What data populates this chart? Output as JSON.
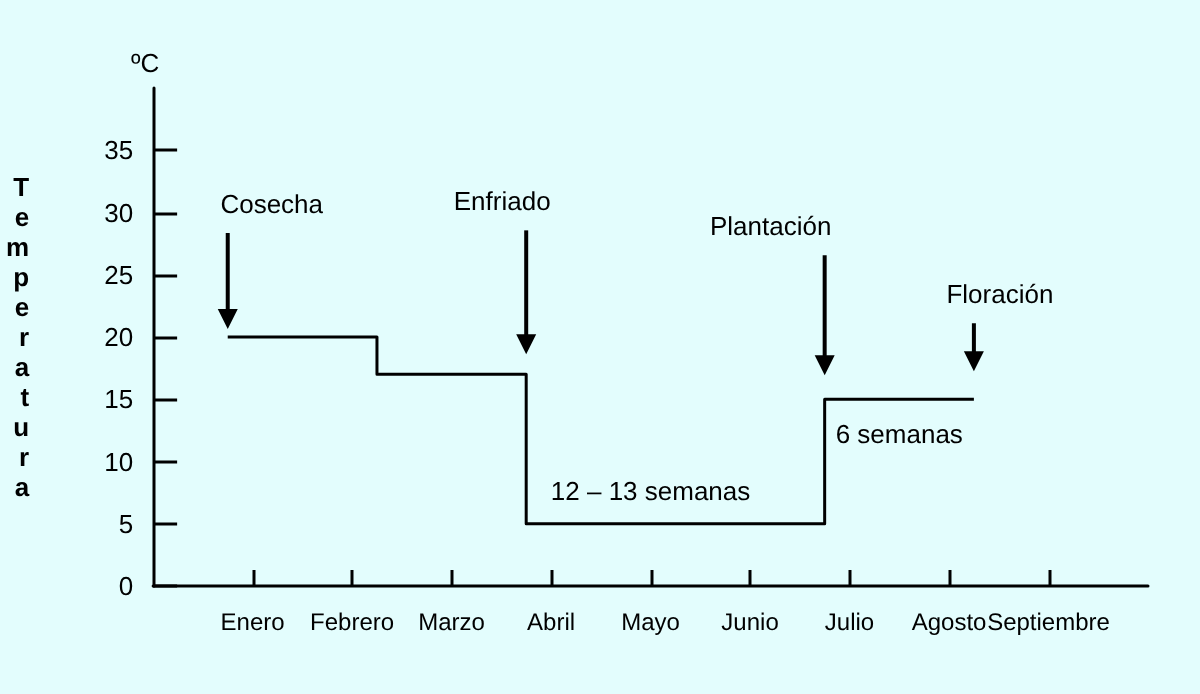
{
  "chart_data": {
    "type": "step",
    "ylabel": "Temperatura",
    "categories": [
      null,
      null,
      null,
      null,
      "Enero",
      null,
      null,
      null,
      "Febrero",
      null,
      null,
      null,
      "Marzo",
      null,
      null,
      null,
      "Abril",
      null,
      null,
      null,
      "Mayo",
      null,
      null,
      null,
      "Junio",
      null,
      null,
      null,
      "Julio",
      null,
      null,
      null,
      "Agosto",
      null,
      null,
      null,
      "Septiembre",
      null,
      null,
      null,
      null
    ],
    "series": [
      {
        "color": "#000000",
        "values": [
          null,
          null,
          null,
          20,
          20,
          20,
          20,
          20,
          20,
          17,
          17,
          17,
          17,
          17,
          17,
          5,
          5,
          5,
          5,
          5,
          5,
          5,
          5,
          5,
          5,
          5,
          5,
          15,
          15,
          15,
          15,
          15,
          15,
          15,
          null,
          null,
          null,
          null,
          null,
          null,
          null
        ]
      }
    ],
    "ylim": [
      0,
      40
    ],
    "yticks": [
      0,
      5,
      10,
      15,
      20,
      25,
      30,
      35
    ],
    "grid": false,
    "marker": "none",
    "line_style": "solid",
    "annotations": [
      "Cosecha",
      "Enfriado",
      "Plantación",
      "Floración",
      "12 – 13 semanas",
      "6 semanas",
      "ºC"
    ]
  }
}
